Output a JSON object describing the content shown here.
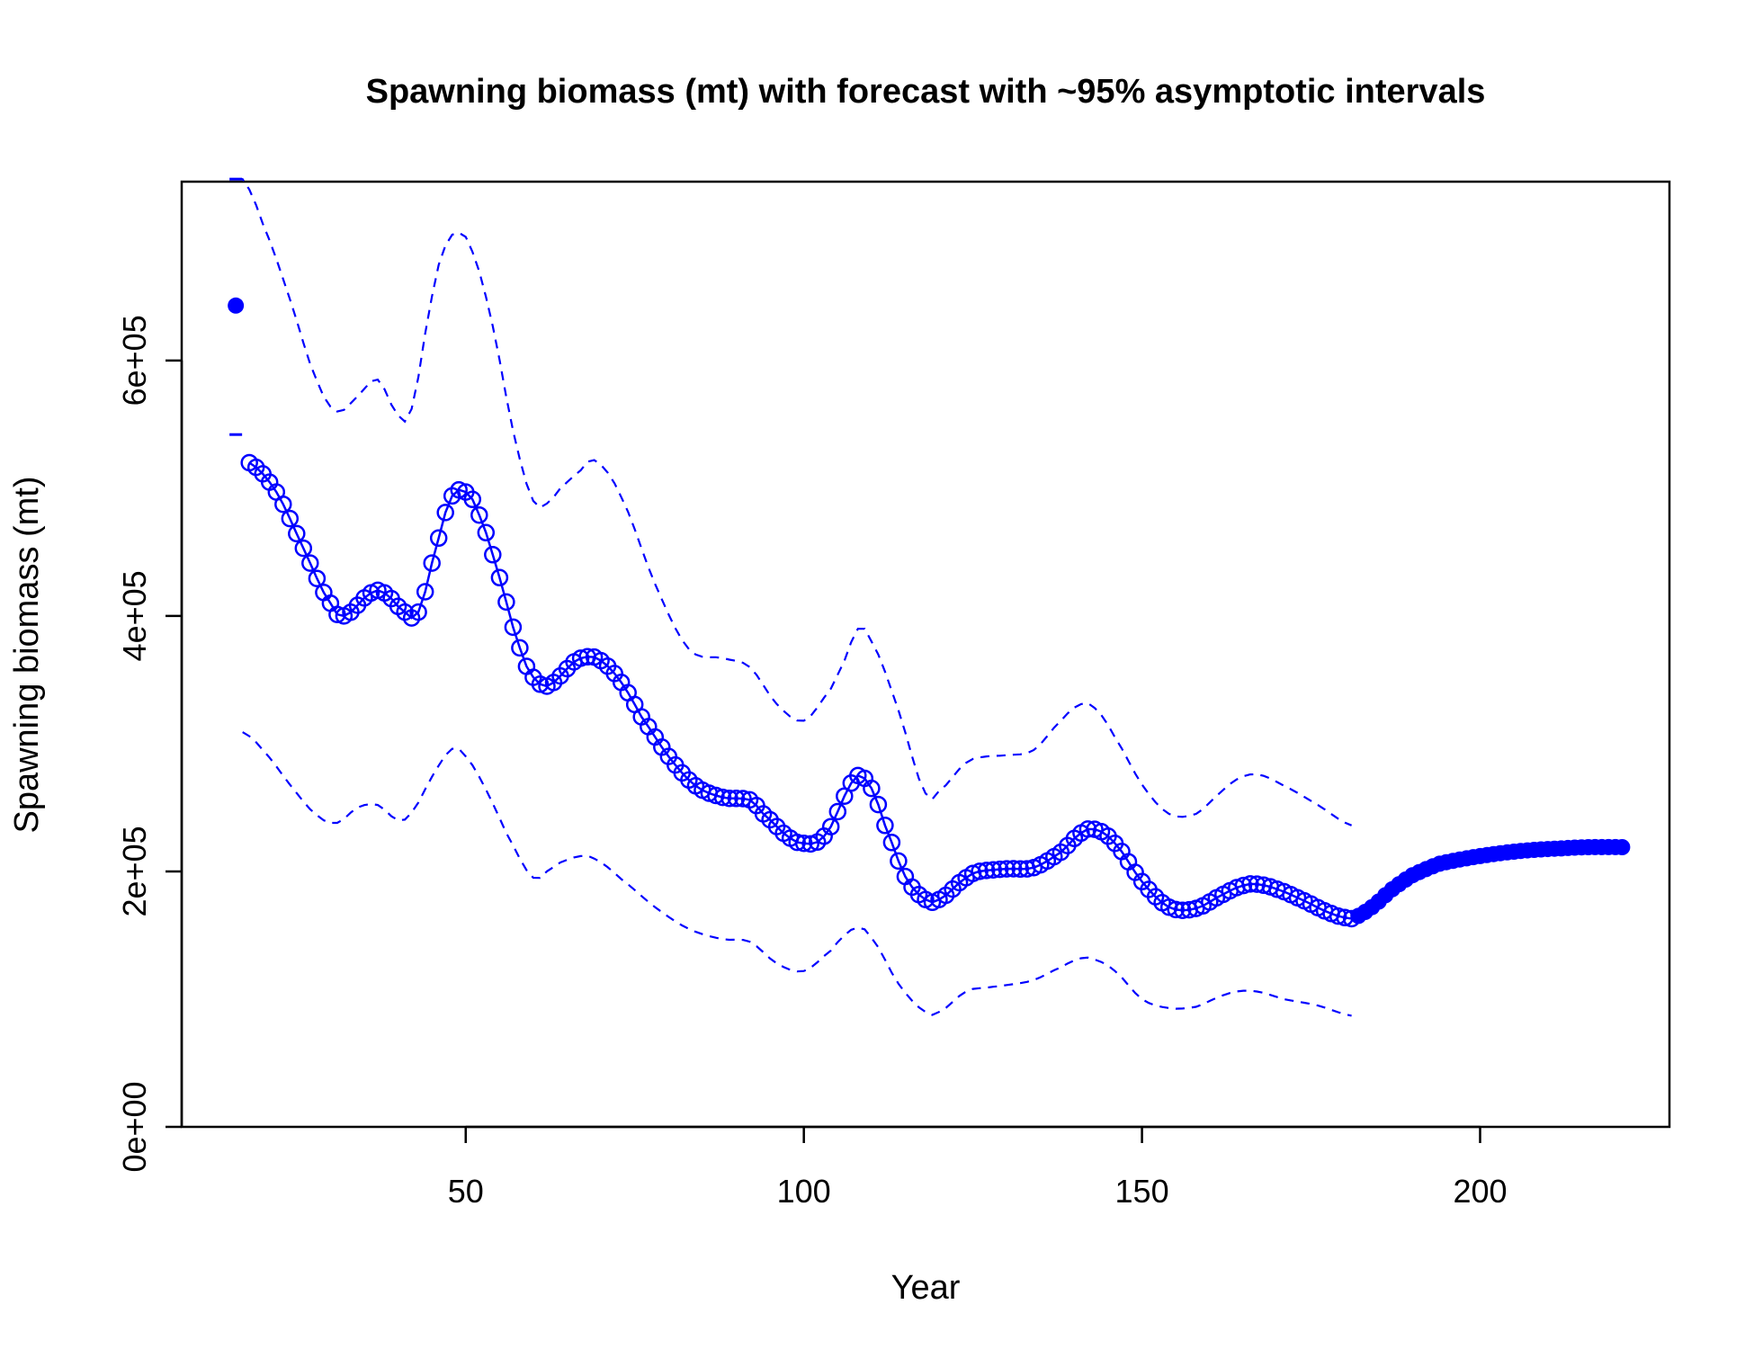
{
  "chart_data": {
    "type": "line",
    "title": "Spawning biomass (mt) with forecast with ~95% asymptotic intervals",
    "xlabel": "Year",
    "ylabel": "Spawning biomass (mt)",
    "xlim": [
      8,
      228
    ],
    "ylim": [
      0,
      740000
    ],
    "x_ticks": [
      50,
      100,
      150,
      200
    ],
    "x_tick_labels": [
      "50",
      "100",
      "150",
      "200"
    ],
    "y_ticks": [
      0,
      200000,
      400000,
      600000
    ],
    "y_tick_labels": [
      "0e+00",
      "2e+05",
      "4e+05",
      "6e+05"
    ],
    "grid": false,
    "legend": "none",
    "colors": {
      "series": "#0000ff",
      "frame": "#000000"
    },
    "virgin_point": {
      "x": 16,
      "y": 643000,
      "upper": 742000,
      "lower": 542000
    },
    "estimate_knots": {
      "x": [
        18,
        22,
        26,
        30,
        32,
        36,
        38,
        41,
        43,
        46,
        48,
        50,
        52,
        55,
        58,
        60,
        62,
        64,
        66,
        68,
        70,
        73,
        76,
        80,
        84,
        88,
        92,
        94,
        98,
        100,
        102,
        104,
        106,
        108,
        110,
        112,
        115,
        118,
        120,
        124,
        126,
        130,
        134,
        138,
        141,
        143,
        146,
        150,
        154,
        158,
        162,
        165,
        167,
        170,
        174,
        178,
        181
      ],
      "y": [
        520000,
        497000,
        453000,
        410000,
        400000,
        418000,
        418000,
        403000,
        403000,
        461000,
        494000,
        497000,
        479000,
        430000,
        375000,
        352000,
        345000,
        353000,
        364000,
        368000,
        365000,
        348000,
        321000,
        290000,
        267000,
        258000,
        256000,
        245000,
        226000,
        222000,
        223000,
        235000,
        259000,
        275000,
        265000,
        236000,
        196000,
        178000,
        178000,
        195000,
        200000,
        202000,
        203000,
        215000,
        230000,
        233000,
        222000,
        192000,
        172000,
        171000,
        182000,
        189000,
        190000,
        186000,
        177000,
        167000,
        163000
      ]
    },
    "forecast_knots": {
      "x": [
        181,
        184,
        187,
        190,
        194,
        200,
        206,
        212,
        216,
        221
      ],
      "y": [
        163000,
        172000,
        186000,
        197000,
        206000,
        212000,
        216000,
        218000,
        219000,
        219000
      ]
    },
    "upper_ci_knots": {
      "x": [
        16,
        17,
        20,
        24,
        28,
        31,
        34,
        37,
        40,
        42,
        45,
        47,
        49,
        51,
        54,
        57,
        60,
        62,
        64,
        67,
        69,
        73,
        78,
        83,
        88,
        92,
        96,
        100,
        104,
        106,
        108,
        110,
        114,
        118,
        120,
        124,
        127,
        130,
        134,
        138,
        141,
        143,
        146,
        150,
        154,
        158,
        161,
        164,
        167,
        171,
        176,
        181
      ],
      "y": [
        742000,
        742000,
        707000,
        648000,
        584000,
        560000,
        572000,
        585000,
        557000,
        562000,
        650000,
        690000,
        700000,
        685000,
        627000,
        545000,
        490000,
        488000,
        500000,
        514000,
        522000,
        493000,
        425000,
        374000,
        367000,
        360000,
        331000,
        318000,
        343000,
        365000,
        390000,
        380000,
        326000,
        261000,
        263000,
        285000,
        290000,
        291000,
        295000,
        318000,
        331000,
        328000,
        305000,
        268000,
        245000,
        245000,
        259000,
        272000,
        276000,
        267000,
        252000,
        236000
      ]
    },
    "lower_ci_knots": {
      "x": [
        17,
        20,
        24,
        28,
        31,
        34,
        37,
        40,
        42,
        45,
        48,
        50,
        53,
        56,
        60,
        62,
        64,
        67,
        69,
        73,
        78,
        83,
        88,
        92,
        96,
        100,
        104,
        106,
        108,
        110,
        114,
        118,
        120,
        124,
        127,
        130,
        134,
        138,
        141,
        143,
        146,
        150,
        154,
        158,
        161,
        164,
        167,
        171,
        176,
        181
      ],
      "y": [
        309000,
        295000,
        268000,
        244000,
        238000,
        250000,
        252000,
        240000,
        246000,
        274000,
        296000,
        290000,
        264000,
        230000,
        195000,
        200000,
        207000,
        212000,
        210000,
        194000,
        172000,
        155000,
        147000,
        145000,
        128000,
        122000,
        138000,
        150000,
        156000,
        148000,
        112000,
        90000,
        90000,
        106000,
        109000,
        111000,
        115000,
        125000,
        132000,
        131000,
        122000,
        100000,
        93000,
        94000,
        101000,
        106000,
        106000,
        100000,
        95000,
        87000
      ]
    }
  }
}
